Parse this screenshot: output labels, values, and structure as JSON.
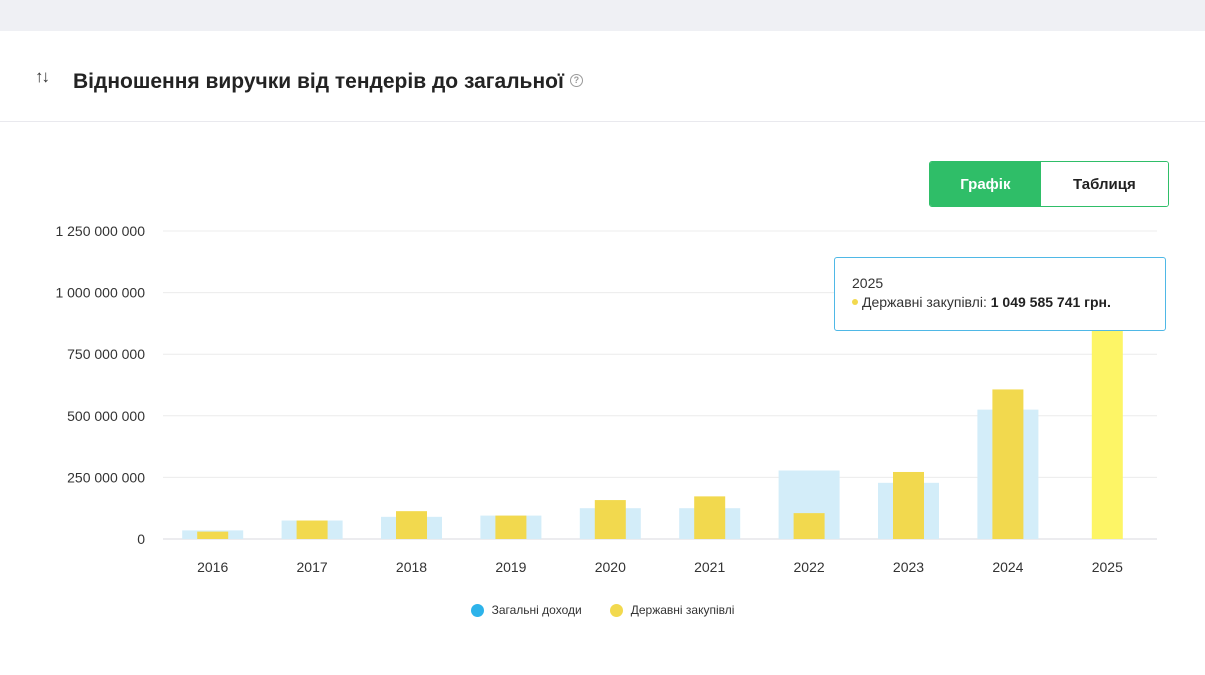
{
  "header": {
    "sort_icon": "↑↓",
    "title": "Відношення виручки від тендерів до загальної",
    "help_icon": "?"
  },
  "toggle": {
    "chart_label": "Графік",
    "table_label": "Таблиця",
    "active": "chart"
  },
  "tooltip": {
    "year": "2025",
    "series": "Державні закупівлі:",
    "value": "1 049 585 741 грн."
  },
  "colors": {
    "accent": "#2fbe68",
    "income": "#d3edf9",
    "income_legend": "#2db3ea",
    "procurement": "#f2d94e",
    "procurement_highlight": "#fdf566",
    "grid": "#ececec",
    "tooltip_border": "#4fb8e6"
  },
  "chart_data": {
    "type": "bar",
    "categories": [
      "2016",
      "2017",
      "2018",
      "2019",
      "2020",
      "2021",
      "2022",
      "2023",
      "2024",
      "2025"
    ],
    "series": [
      {
        "name": "Загальні доходи",
        "values": [
          35000000,
          75000000,
          90000000,
          95000000,
          125000000,
          125000000,
          278000000,
          228000000,
          525000000,
          0
        ]
      },
      {
        "name": "Державні закупівлі",
        "values": [
          30000000,
          75000000,
          113000000,
          95000000,
          158000000,
          173000000,
          105000000,
          272000000,
          607000000,
          1049585741
        ]
      }
    ],
    "y_ticks": [
      "0",
      "250 000 000",
      "500 000 000",
      "750 000 000",
      "1 000 000 000",
      "1 250 000 000"
    ],
    "ylim": [
      0,
      1250000000
    ],
    "grid": true,
    "legend_position": "bottom",
    "highlighted_category": "2025"
  }
}
